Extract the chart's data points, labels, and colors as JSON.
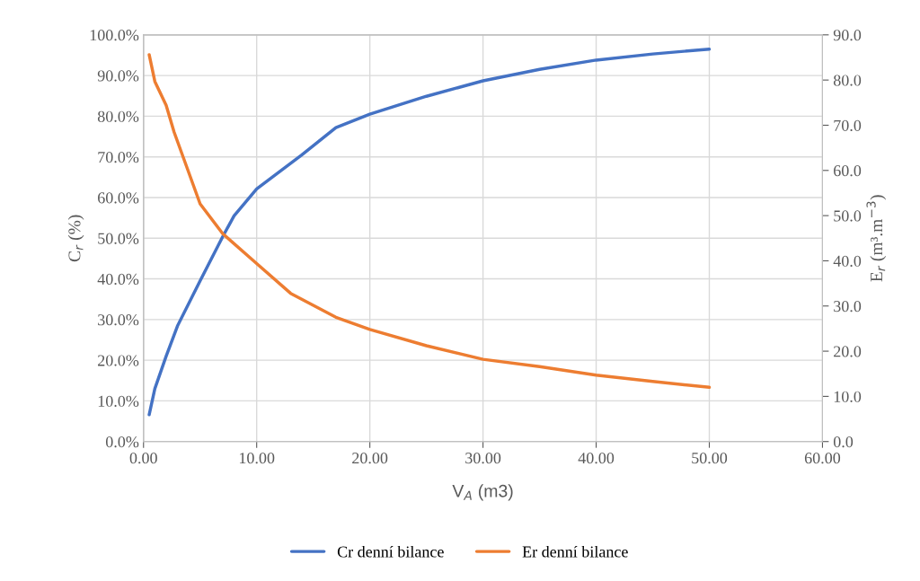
{
  "chart_data": {
    "type": "line",
    "xlabel": "V$_{A}$ (m3)",
    "ylabel": "C$_{r}$ (%)",
    "y2label": "E$_{r}$ (m³.m$^{−3}$)",
    "series": [
      {
        "name": "Cr denní bilance",
        "color": "#4472c4",
        "x": [
          0.5,
          1,
          2,
          3,
          5,
          7,
          8,
          10,
          14,
          17,
          20,
          25,
          30,
          35,
          40,
          45,
          50
        ],
        "values": [
          6.6,
          13,
          21,
          28.4,
          39.5,
          50.4,
          55.5,
          62.1,
          70.5,
          77.2,
          80.5,
          84.9,
          88.7,
          91.5,
          93.8,
          95.3,
          96.5
        ]
      },
      {
        "name": "Er denní bilance",
        "color": "#ed7d31",
        "axis": "y2",
        "x": [
          0.5,
          1,
          2,
          2.7,
          5,
          7,
          10,
          13,
          17,
          20,
          25,
          30,
          35,
          40,
          45,
          50
        ],
        "values": [
          85.6,
          79.7,
          74.4,
          68.5,
          52.6,
          46,
          39.4,
          32.8,
          27.5,
          24.8,
          21.2,
          18.2,
          16.6,
          14.7,
          13.3,
          12.0
        ]
      }
    ],
    "xlim": [
      0,
      60
    ],
    "xticks": [
      {
        "value": 0,
        "label": "0.00"
      },
      {
        "value": 10,
        "label": "10.00"
      },
      {
        "value": 20,
        "label": "20.00"
      },
      {
        "value": 30,
        "label": "30.00"
      },
      {
        "value": 40,
        "label": "40.00"
      },
      {
        "value": 50,
        "label": "50.00"
      },
      {
        "value": 60,
        "label": "60.00"
      }
    ],
    "ylim": [
      0,
      100
    ],
    "yticks": [
      {
        "value": 0,
        "label": "0.0%"
      },
      {
        "value": 10,
        "label": "10.0%"
      },
      {
        "value": 20,
        "label": "20.0%"
      },
      {
        "value": 30,
        "label": "30.0%"
      },
      {
        "value": 40,
        "label": "40.0%"
      },
      {
        "value": 50,
        "label": "50.0%"
      },
      {
        "value": 60,
        "label": "60.0%"
      },
      {
        "value": 70,
        "label": "70.0%"
      },
      {
        "value": 80,
        "label": "80.0%"
      },
      {
        "value": 90,
        "label": "90.0%"
      },
      {
        "value": 100,
        "label": "100.0%"
      }
    ],
    "y2lim": [
      0,
      90
    ],
    "y2ticks": [
      {
        "value": 0,
        "label": "0.0"
      },
      {
        "value": 10,
        "label": "10.0"
      },
      {
        "value": 20,
        "label": "20.0"
      },
      {
        "value": 30,
        "label": "30.0"
      },
      {
        "value": 40,
        "label": "40.0"
      },
      {
        "value": 50,
        "label": "50.0"
      },
      {
        "value": 60,
        "label": "60.0"
      },
      {
        "value": 70,
        "label": "70.0"
      },
      {
        "value": 80,
        "label": "80.0"
      },
      {
        "value": 90,
        "label": "90.0"
      }
    ],
    "grid": true,
    "legend": "bottom",
    "marker": "none",
    "line_style": "solid"
  }
}
